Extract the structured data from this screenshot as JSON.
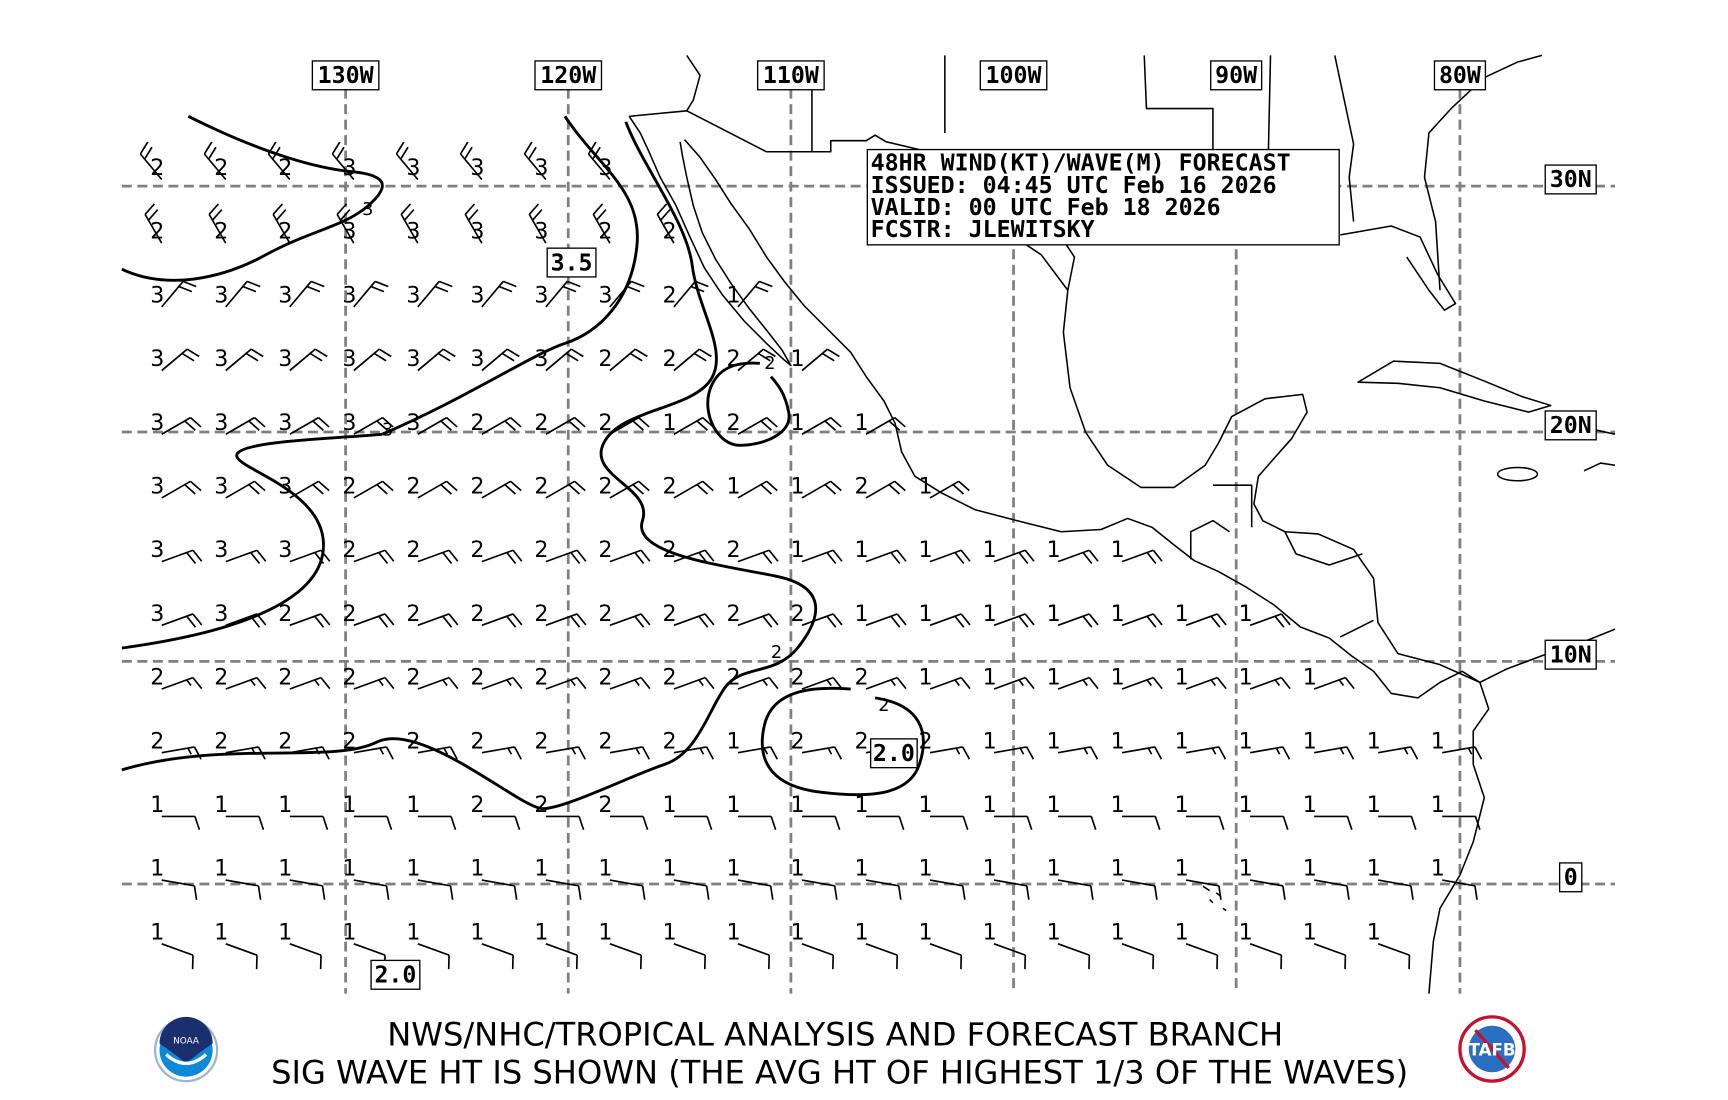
{
  "title_box": {
    "line1": "48HR WIND(KT)/WAVE(M) FORECAST",
    "line2": "ISSUED: 04:45 UTC Feb 16 2026",
    "line3": "VALID: 00 UTC Feb 18 2026",
    "line4": "FCSTR: JLEWITSKY"
  },
  "longitude_labels": [
    "130W",
    "120W",
    "110W",
    "100W",
    "90W",
    "80W"
  ],
  "latitude_labels": [
    "30N",
    "20N",
    "10N",
    "0"
  ],
  "contour_labels": {
    "box_a": "3.5",
    "box_b": "2.0",
    "box_c": "2.0",
    "small_a": "3",
    "small_b": "3",
    "small_c": "2",
    "small_d": "2",
    "small_e": "2"
  },
  "wave_heights_m": [
    [
      2,
      2,
      2,
      3,
      3,
      3,
      3,
      3
    ],
    [
      2,
      2,
      2,
      3,
      3,
      3,
      3,
      2,
      2
    ],
    [
      3,
      3,
      3,
      3,
      3,
      3,
      3,
      3,
      2,
      1
    ],
    [
      3,
      3,
      3,
      3,
      3,
      3,
      3,
      2,
      2,
      2,
      1
    ],
    [
      3,
      3,
      3,
      3,
      3,
      2,
      2,
      2,
      1,
      2,
      1,
      1
    ],
    [
      3,
      3,
      3,
      2,
      2,
      2,
      2,
      2,
      2,
      1,
      1,
      2,
      1
    ],
    [
      3,
      3,
      3,
      2,
      2,
      2,
      2,
      2,
      2,
      2,
      1,
      1,
      1,
      1,
      1,
      1
    ],
    [
      3,
      3,
      2,
      2,
      2,
      2,
      2,
      2,
      2,
      2,
      2,
      1,
      1,
      1,
      1,
      1,
      1,
      1
    ],
    [
      2,
      2,
      2,
      2,
      2,
      2,
      2,
      2,
      2,
      2,
      2,
      2,
      1,
      1,
      1,
      1,
      1,
      1,
      1
    ],
    [
      2,
      2,
      2,
      2,
      2,
      2,
      2,
      2,
      2,
      1,
      2,
      2,
      2,
      1,
      1,
      1,
      1,
      1,
      1,
      1,
      1
    ],
    [
      1,
      1,
      1,
      1,
      1,
      2,
      2,
      2,
      1,
      1,
      1,
      1,
      1,
      1,
      1,
      1,
      1,
      1,
      1,
      1,
      1
    ],
    [
      1,
      1,
      1,
      1,
      1,
      1,
      1,
      1,
      1,
      1,
      1,
      1,
      1,
      1,
      1,
      1,
      1,
      1,
      1,
      1,
      1
    ],
    [
      1,
      1,
      1,
      1,
      1,
      1,
      1,
      1,
      1,
      1,
      1,
      1,
      1,
      1,
      1,
      1,
      1,
      1,
      1,
      1
    ]
  ],
  "wind_rows_approx": [
    {
      "dir_from_deg": 320,
      "kt": 20
    },
    {
      "dir_from_deg": 330,
      "kt": 20
    },
    {
      "dir_from_deg": 40,
      "kt": 20
    },
    {
      "dir_from_deg": 50,
      "kt": 20
    },
    {
      "dir_from_deg": 60,
      "kt": 20
    },
    {
      "dir_from_deg": 60,
      "kt": 20
    },
    {
      "dir_from_deg": 70,
      "kt": 20
    },
    {
      "dir_from_deg": 70,
      "kt": 20
    },
    {
      "dir_from_deg": 70,
      "kt": 15
    },
    {
      "dir_from_deg": 80,
      "kt": 15
    },
    {
      "dir_from_deg": 90,
      "kt": 10
    },
    {
      "dir_from_deg": 100,
      "kt": 10
    },
    {
      "dir_from_deg": 110,
      "kt": 10
    }
  ],
  "footer": {
    "line1": "NWS/NHC/TROPICAL ANALYSIS AND FORECAST BRANCH",
    "line2": "SIG WAVE HT IS SHOWN (THE AVG HT OF HIGHEST 1/3 OF THE WAVES)"
  },
  "logos": {
    "left": "NOAA",
    "right": "TAFB"
  },
  "colors": {
    "grid": "#808080",
    "noaa_blue": "#0a5fb4",
    "noaa_navy": "#1b2f6e",
    "tafb_red": "#c8102e"
  }
}
